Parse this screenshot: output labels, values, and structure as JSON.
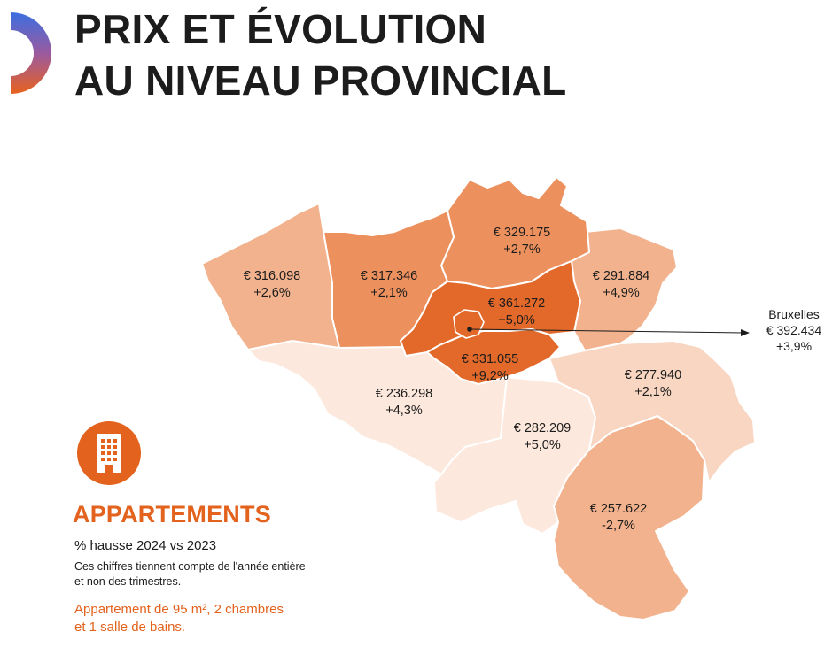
{
  "header": {
    "title_line1": "PRIX ET ÉVOLUTION",
    "title_line2": "AU NIVEAU PROVINCIAL"
  },
  "colors": {
    "accent": "#e2621e",
    "logo_gradient_top": "#3b6fe0",
    "logo_gradient_bottom": "#e8621e",
    "shade_darkest": "#e2692a",
    "shade_dark": "#ec915e",
    "shade_medium": "#f2b28d",
    "shade_light": "#f8d6c1",
    "shade_lightest": "#fce8dc"
  },
  "icons": {
    "logo": "logo-arc-icon",
    "legend": "apartment-building-icon"
  },
  "map": {
    "provinces": [
      {
        "id": "flandre-occidentale",
        "price": "€ 316.098",
        "change": "+2,6%"
      },
      {
        "id": "flandre-orientale",
        "price": "€ 317.346",
        "change": "+2,1%"
      },
      {
        "id": "anvers",
        "price": "€ 329.175",
        "change": "+2,7%"
      },
      {
        "id": "limbourg",
        "price": "€ 291.884",
        "change": "+4,9%"
      },
      {
        "id": "brabant-flamand",
        "price": "€ 361.272",
        "change": "+5,0%"
      },
      {
        "id": "brabant-wallon",
        "price": "€ 331.055",
        "change": "+9,2%"
      },
      {
        "id": "hainaut",
        "price": "€ 236.298",
        "change": "+4,3%"
      },
      {
        "id": "namur",
        "price": "€ 282.209",
        "change": "+5,0%"
      },
      {
        "id": "liege",
        "price": "€ 277.940",
        "change": "+2,1%"
      },
      {
        "id": "luxembourg",
        "price": "€ 257.622",
        "change": "-2,7%"
      }
    ],
    "brussels": {
      "name": "Bruxelles",
      "price": "€ 392.434",
      "change": "+3,9%"
    }
  },
  "legend": {
    "title": "APPARTEMENTS",
    "subtitle": "% hausse 2024 vs 2023",
    "note_line1": "Ces chiffres tiennent compte de l'année entière",
    "note_line2": "et non des trimestres.",
    "spec_line1": "Appartement de 95 m², 2 chambres",
    "spec_line2": "et 1 salle de bains."
  }
}
